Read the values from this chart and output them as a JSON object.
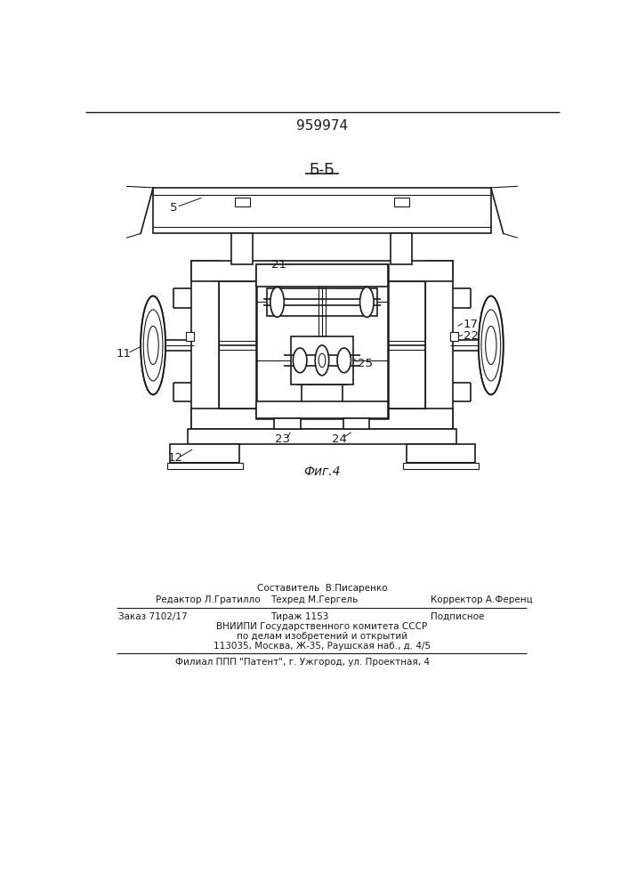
{
  "patent_number": "959974",
  "section_label": "Б-Б",
  "fig_label": "Фиг.4",
  "bg_color": "#ffffff",
  "line_color": "#1a1a1a",
  "footer": {
    "line1_center": "Составитель  В.Писаренко",
    "line1_left": "Редактор Л.Гратилло",
    "line2_center": "Техред М.Гергель",
    "line1_right": "Корректор А.Ференц",
    "line3_left": "Заказ 7102/17",
    "line3_center": "Тираж 1153",
    "line3_right": "Подписное",
    "line4": "ВНИИПИ Государственного комитета СССР",
    "line5": "по делам изобретений и открытий",
    "line6": "113035, Москва, Ж-35, Раушская наб., д. 4/5",
    "line7": "Филиал ППП \"Патент\", г. Ужгород, ул. Проектная, 4"
  }
}
